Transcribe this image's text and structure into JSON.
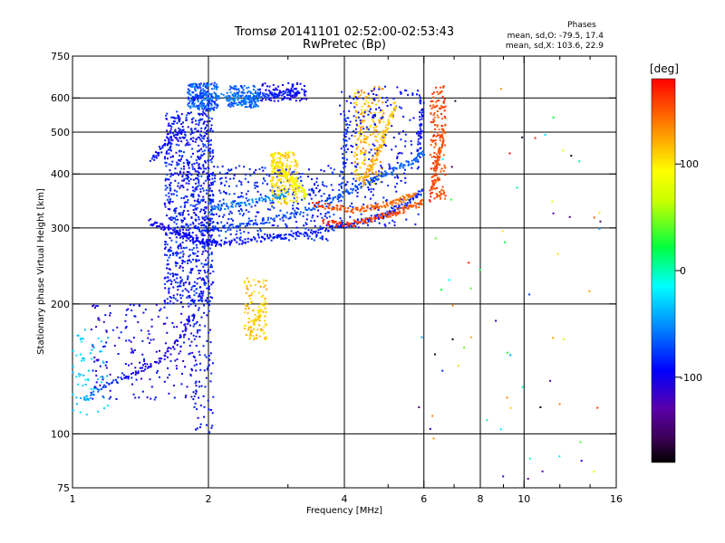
{
  "chart_data": {
    "type": "scatter",
    "title": "Tromsø 20141101 02:52:00-02:53:43",
    "subtitle": "RwPretec (Bp)",
    "stats": {
      "heading": "Phases",
      "line1": "mean, sd,O: -79.5, 17.4",
      "line2": "mean, sd,X: 103.6, 22.9"
    },
    "xlabel": "Frequency [MHz]",
    "ylabel": "Stationary phase Virtual Height [km]",
    "x_scale": "log",
    "y_scale": "log",
    "xlim": [
      1,
      16
    ],
    "ylim": [
      75,
      750
    ],
    "x_ticks": [
      1,
      2,
      4,
      6,
      8,
      10,
      16
    ],
    "x_tick_labels": [
      "1",
      "2",
      "4",
      "6",
      "8",
      "10",
      "16"
    ],
    "x_minor_ticks": [
      3,
      5,
      7,
      9,
      12,
      14
    ],
    "y_ticks": [
      75,
      100,
      200,
      300,
      400,
      500,
      600,
      750
    ],
    "y_tick_labels": [
      "75",
      "100",
      "200",
      "300",
      "400",
      "500",
      "600",
      "750"
    ],
    "x_gridlines": [
      2,
      4,
      6,
      8,
      10
    ],
    "y_gridlines": [
      100,
      200,
      300,
      400,
      500,
      600
    ],
    "colorbar": {
      "label": "[deg]",
      "range": [
        -180,
        180
      ],
      "ticks": [
        100,
        0,
        -100
      ],
      "tick_labels": [
        "100",
        "0",
        "-100"
      ]
    },
    "colors": {
      "grid": "#000000",
      "background": "#ffffff"
    },
    "traces": [
      {
        "freq": [
          1.48,
          1.6,
          1.75,
          1.85,
          1.95,
          2.1,
          2.4,
          2.8,
          3.2,
          3.7,
          4.1,
          4.6,
          5.1,
          5.6,
          5.95
        ],
        "height": [
          310,
          300,
          290,
          283,
          278,
          276,
          280,
          285,
          290,
          298,
          305,
          315,
          328,
          345,
          365
        ],
        "phase": [
          -100,
          -105,
          -100,
          -98,
          -95,
          -95,
          -92,
          -90,
          -90,
          -90,
          -85,
          -85,
          -85,
          -85,
          -85
        ]
      },
      {
        "freq": [
          1.9,
          2.1,
          2.4,
          2.8,
          3.3,
          3.8,
          4.2,
          4.7,
          5.2,
          5.7,
          6.0
        ],
        "height": [
          300,
          298,
          305,
          315,
          330,
          350,
          370,
          390,
          410,
          430,
          450
        ],
        "phase": [
          -85,
          -80,
          -75,
          -70,
          -70,
          -70,
          -70,
          -68,
          -65,
          -65,
          -65
        ]
      },
      {
        "freq": [
          2.0,
          2.3,
          2.7,
          3.0
        ],
        "height": [
          330,
          340,
          350,
          360
        ],
        "phase": [
          -60,
          -55,
          -50,
          -50
        ]
      },
      {
        "freq": [
          2.75,
          2.9,
          3.05,
          3.2,
          3.3
        ],
        "height": [
          430,
          410,
          390,
          370,
          350
        ],
        "phase": [
          110,
          100,
          95,
          90,
          85
        ]
      },
      {
        "freq": [
          3.4,
          3.8,
          4.2,
          4.6,
          5.0,
          5.4,
          5.8
        ],
        "height": [
          340,
          335,
          330,
          335,
          340,
          350,
          360
        ],
        "phase": [
          160,
          155,
          150,
          150,
          145,
          140,
          140
        ]
      },
      {
        "freq": [
          3.6,
          4.0,
          4.4,
          4.8,
          5.2,
          5.6,
          6.0
        ],
        "height": [
          310,
          305,
          310,
          318,
          325,
          335,
          345
        ],
        "phase": [
          170,
          165,
          160,
          160,
          155,
          150,
          150
        ]
      },
      {
        "freq": [
          4.4,
          4.6,
          4.8,
          5.0,
          5.2
        ],
        "height": [
          380,
          420,
          460,
          520,
          580
        ],
        "phase": [
          130,
          125,
          120,
          115,
          110
        ]
      },
      {
        "freq": [
          6.2,
          6.35,
          6.5,
          6.65
        ],
        "height": [
          350,
          400,
          450,
          520
        ],
        "phase": [
          165,
          160,
          155,
          150
        ]
      },
      {
        "freq": [
          2.45,
          2.55,
          2.65
        ],
        "height": [
          170,
          185,
          200
        ],
        "phase": [
          120,
          110,
          100
        ]
      },
      {
        "freq": [
          1.05,
          1.2,
          1.4,
          1.6,
          1.75,
          1.85
        ],
        "height": [
          120,
          130,
          140,
          150,
          170,
          190
        ],
        "phase": [
          -40,
          -80,
          -100,
          -105,
          -105,
          -100
        ]
      },
      {
        "freq": [
          1.5,
          1.6,
          1.75
        ],
        "height": [
          430,
          470,
          500
        ],
        "phase": [
          -90,
          -95,
          -100
        ]
      },
      {
        "freq": [
          1.85,
          2.0,
          2.3,
          2.6,
          2.9,
          3.2
        ],
        "height": [
          600,
          610,
          600,
          605,
          615,
          620
        ],
        "phase": [
          -95,
          -60,
          -50,
          -70,
          -85,
          -90
        ]
      },
      {
        "freq": [
          3.9,
          4.0,
          4.05
        ],
        "height": [
          350,
          450,
          550
        ],
        "phase": [
          -80,
          -80,
          -80
        ]
      },
      {
        "freq": [
          5.85,
          5.9,
          5.95
        ],
        "height": [
          450,
          520,
          600
        ],
        "phase": [
          -90,
          -90,
          -90
        ]
      }
    ],
    "scatter_blobs": [
      {
        "freq_range": [
          1.6,
          2.05
        ],
        "height_range": [
          200,
          560
        ],
        "phase_range": [
          -110,
          -70
        ],
        "count": 900
      },
      {
        "freq_range": [
          1.8,
          2.1
        ],
        "height_range": [
          560,
          650
        ],
        "phase_range": [
          -90,
          -50
        ],
        "count": 200
      },
      {
        "freq_range": [
          2.2,
          2.6
        ],
        "height_range": [
          570,
          640
        ],
        "phase_range": [
          -80,
          -50
        ],
        "count": 150
      },
      {
        "freq_range": [
          2.6,
          3.3
        ],
        "height_range": [
          590,
          650
        ],
        "phase_range": [
          -110,
          -90
        ],
        "count": 100
      },
      {
        "freq_range": [
          2.0,
          3.8
        ],
        "height_range": [
          280,
          420
        ],
        "phase_range": [
          -100,
          -70
        ],
        "count": 400
      },
      {
        "freq_range": [
          2.75,
          3.15
        ],
        "height_range": [
          340,
          450
        ],
        "phase_range": [
          90,
          120
        ],
        "count": 220
      },
      {
        "freq_range": [
          2.4,
          2.7
        ],
        "height_range": [
          165,
          230
        ],
        "phase_range": [
          100,
          130
        ],
        "count": 90
      },
      {
        "freq_range": [
          4.2,
          4.9
        ],
        "height_range": [
          380,
          640
        ],
        "phase_range": [
          100,
          140
        ],
        "count": 200
      },
      {
        "freq_range": [
          3.9,
          5.9
        ],
        "height_range": [
          300,
          640
        ],
        "phase_range": [
          -100,
          -80
        ],
        "count": 250
      },
      {
        "freq_range": [
          6.2,
          6.7
        ],
        "height_range": [
          350,
          640
        ],
        "phase_range": [
          140,
          170
        ],
        "count": 160
      },
      {
        "freq_range": [
          1.1,
          1.9
        ],
        "height_range": [
          120,
          200
        ],
        "phase_range": [
          -120,
          -80
        ],
        "count": 200
      },
      {
        "freq_range": [
          1.0,
          1.2
        ],
        "height_range": [
          110,
          175
        ],
        "phase_range": [
          -40,
          -20
        ],
        "count": 60
      },
      {
        "freq_range": [
          1.85,
          2.05
        ],
        "height_range": [
          100,
          200
        ],
        "phase_range": [
          -100,
          -80
        ],
        "count": 80
      },
      {
        "freq_range": [
          5.8,
          15.0
        ],
        "height_range": [
          78,
          650
        ],
        "phase_range": [
          -180,
          180
        ],
        "count": 70
      }
    ]
  }
}
